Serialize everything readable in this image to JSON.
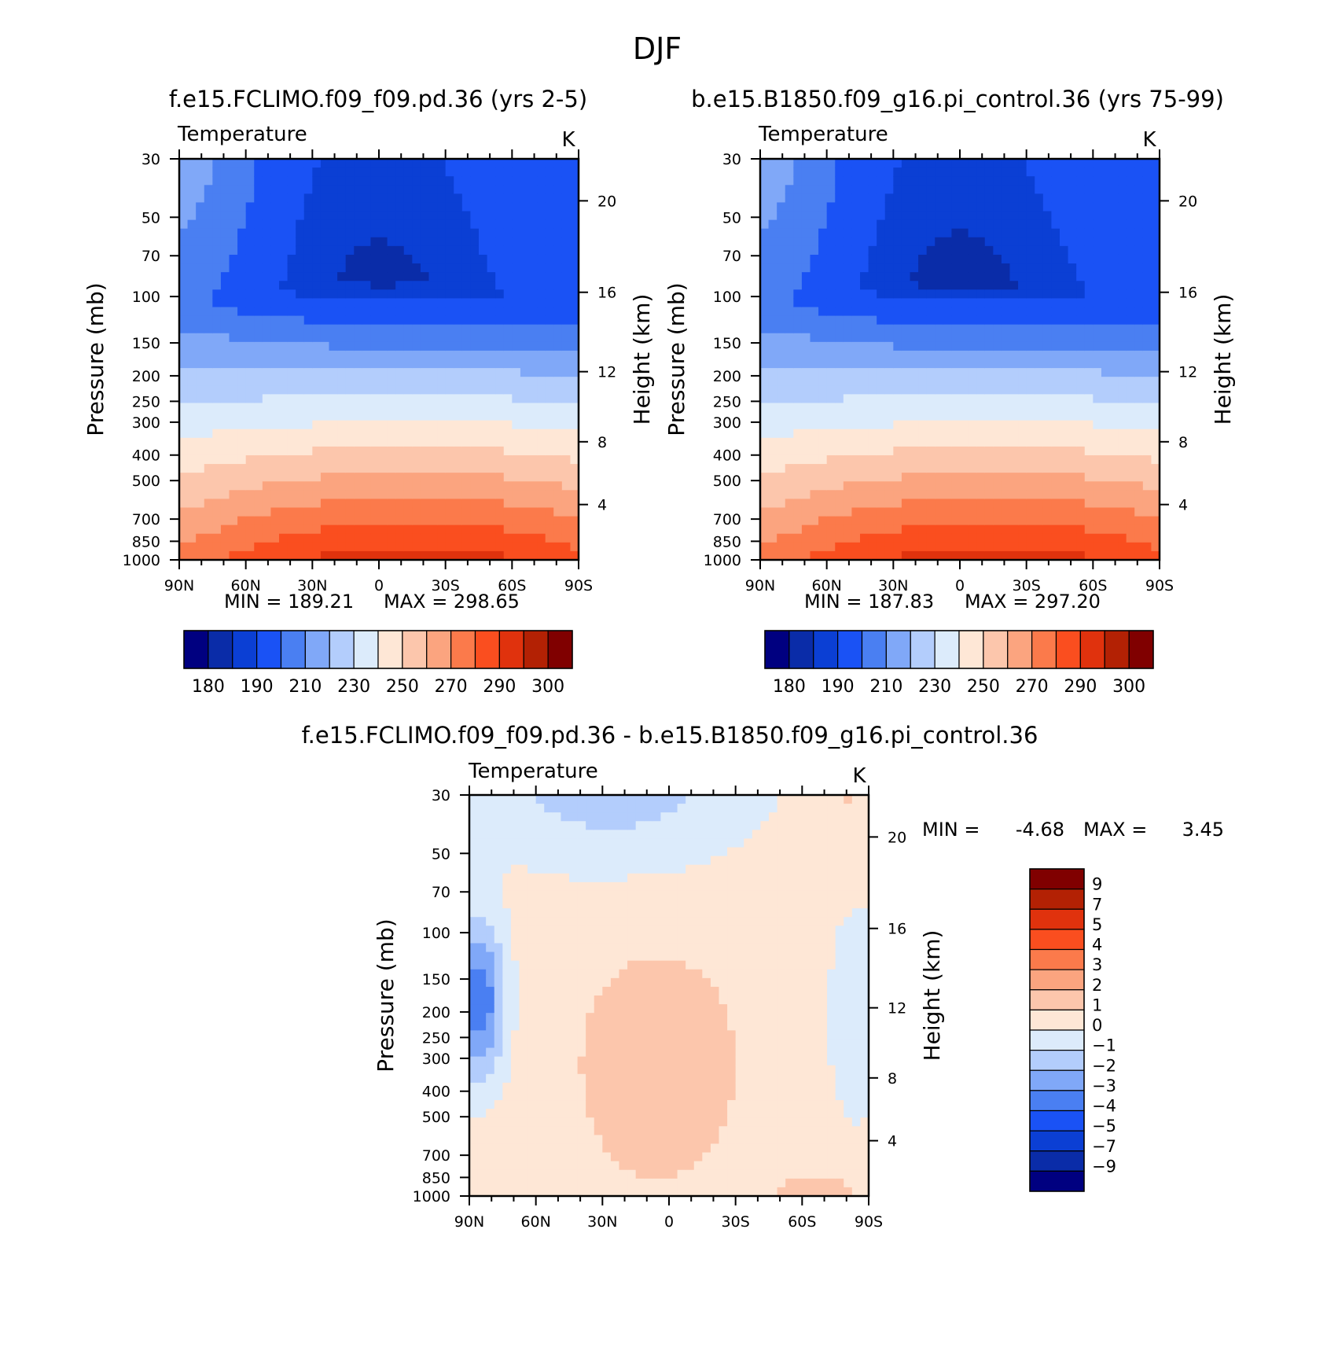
{
  "figure_title": "DJF",
  "units": "K",
  "chart_data": [
    {
      "type": "contour",
      "title": "f.e15.FCLIMO.f09_f09.pd.36 (yrs 2-5)",
      "variable": "Temperature",
      "units": "K",
      "xlabel": "",
      "ylabel": "Pressure (mb)",
      "ylabel_right": "Height (km)",
      "x_ticks": [
        "90N",
        "60N",
        "30N",
        "0",
        "30S",
        "60S",
        "90S"
      ],
      "x_values": [
        -90,
        -60,
        -30,
        0,
        30,
        60,
        90
      ],
      "y_ticks": [
        30,
        50,
        70,
        100,
        150,
        200,
        250,
        300,
        400,
        500,
        700,
        850,
        1000
      ],
      "y_ticks_right": [
        4,
        8,
        12,
        16,
        20
      ],
      "ylim": [
        1000,
        30
      ],
      "min_label": "MIN =  189.21",
      "max_label": "MAX =  298.65",
      "min": 189.21,
      "max": 298.65,
      "levels": [
        180,
        185,
        190,
        200,
        210,
        220,
        230,
        240,
        250,
        260,
        270,
        280,
        290,
        295,
        300
      ],
      "colorbar_labels": [
        "180",
        "190",
        "210",
        "230",
        "250",
        "270",
        "290",
        "300"
      ]
    },
    {
      "type": "contour",
      "title": "b.e15.B1850.f09_g16.pi_control.36 (yrs 75-99)",
      "variable": "Temperature",
      "units": "K",
      "xlabel": "",
      "ylabel": "Pressure (mb)",
      "ylabel_right": "Height (km)",
      "x_ticks": [
        "90N",
        "60N",
        "30N",
        "0",
        "30S",
        "60S",
        "90S"
      ],
      "x_values": [
        -90,
        -60,
        -30,
        0,
        30,
        60,
        90
      ],
      "y_ticks": [
        30,
        50,
        70,
        100,
        150,
        200,
        250,
        300,
        400,
        500,
        700,
        850,
        1000
      ],
      "y_ticks_right": [
        4,
        8,
        12,
        16,
        20
      ],
      "ylim": [
        1000,
        30
      ],
      "min_label": "MIN =  187.83",
      "max_label": "MAX =  297.20",
      "min": 187.83,
      "max": 297.2,
      "levels": [
        180,
        185,
        190,
        200,
        210,
        220,
        230,
        240,
        250,
        260,
        270,
        280,
        290,
        295,
        300
      ],
      "colorbar_labels": [
        "180",
        "190",
        "210",
        "230",
        "250",
        "270",
        "290",
        "300"
      ]
    },
    {
      "type": "contour",
      "title": "f.e15.FCLIMO.f09_f09.pd.36 - b.e15.B1850.f09_g16.pi_control.36",
      "variable": "Temperature",
      "units": "K",
      "xlabel": "",
      "ylabel": "Pressure (mb)",
      "ylabel_right": "Height (km)",
      "x_ticks": [
        "90N",
        "60N",
        "30N",
        "0",
        "30S",
        "60S",
        "90S"
      ],
      "x_values": [
        -90,
        -60,
        -30,
        0,
        30,
        60,
        90
      ],
      "y_ticks": [
        30,
        50,
        70,
        100,
        150,
        200,
        250,
        300,
        400,
        500,
        700,
        850,
        1000
      ],
      "y_ticks_right": [
        4,
        8,
        12,
        16,
        20
      ],
      "ylim": [
        1000,
        30
      ],
      "min_label": "MIN =",
      "min_value_label": "-4.68",
      "max_label": "MAX =",
      "max_value_label": "3.45",
      "min": -4.68,
      "max": 3.45,
      "levels": [
        -9,
        -7,
        -5,
        -4,
        -3,
        -2,
        -1,
        0,
        1,
        2,
        3,
        4,
        5,
        7,
        9
      ],
      "colorbar_labels": [
        "9",
        "7",
        "5",
        "4",
        "3",
        "2",
        "1",
        "0",
        "-1",
        "-2",
        "-3",
        "-4",
        "-5",
        "-7",
        "-9"
      ]
    }
  ],
  "colors": {
    "abs_palette": [
      "#000080",
      "#0a2ca8",
      "#0b3fd4",
      "#1a52f5",
      "#4a7ff2",
      "#80a8f8",
      "#b3cdfc",
      "#dcebfb",
      "#fee7d6",
      "#fcc6ac",
      "#fba47f",
      "#fb7a4b",
      "#fa4e1f",
      "#e0320d",
      "#b32104",
      "#800000"
    ],
    "diff_palette": [
      "#800000",
      "#b32104",
      "#e0320d",
      "#fa4e1f",
      "#fb7a4b",
      "#fba47f",
      "#fcc6ac",
      "#fee7d6",
      "#dcebfb",
      "#b3cdfc",
      "#80a8f8",
      "#4a7ff2",
      "#1a52f5",
      "#0b3fd4",
      "#0a2ca8",
      "#000080"
    ]
  }
}
